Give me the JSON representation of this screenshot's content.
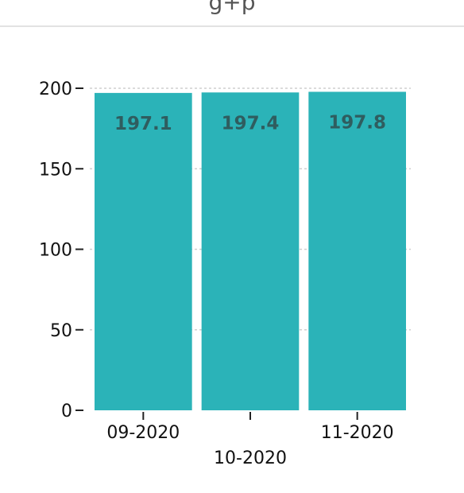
{
  "header": {
    "partial_title": "g+p"
  },
  "chart_data": {
    "type": "bar",
    "categories": [
      "09-2020",
      "10-2020",
      "11-2020"
    ],
    "values": [
      197.1,
      197.4,
      197.8
    ],
    "value_labels": [
      "197.1",
      "197.4",
      "197.8"
    ],
    "y_ticks": [
      "0",
      "50",
      "100",
      "150",
      "200"
    ],
    "ylim": [
      0,
      200
    ],
    "grid": true,
    "bar_color": "#2bb3b8",
    "label_color": "#2f5d5f"
  }
}
